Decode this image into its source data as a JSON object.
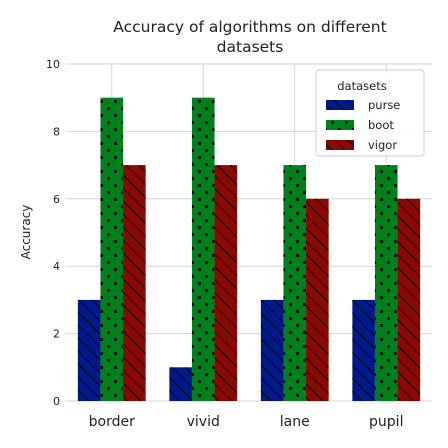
{
  "chart_data": {
    "type": "bar",
    "title_lines": [
      "Accuracy of algorithms on different",
      "datasets"
    ],
    "xlabel": "",
    "ylabel": "Accuracy",
    "categories": [
      "border",
      "vivid",
      "lane",
      "pupil"
    ],
    "series": [
      {
        "name": "purse",
        "color": "#001a8a",
        "pattern": "hatch-backslash",
        "values": [
          3,
          1,
          3,
          3
        ]
      },
      {
        "name": "boot",
        "color": "#00801a",
        "pattern": "dots",
        "values": [
          9,
          9,
          7,
          7
        ]
      },
      {
        "name": "vigor",
        "color": "#8a0a00",
        "pattern": "hatch-backslash",
        "values": [
          7,
          7,
          6,
          6
        ]
      }
    ],
    "ylim": [
      0,
      10
    ],
    "yticks": [
      "0",
      "2",
      "4",
      "6",
      "8",
      "10"
    ],
    "grid": true,
    "legend": {
      "title": "datasets",
      "placement": "top-right"
    }
  }
}
